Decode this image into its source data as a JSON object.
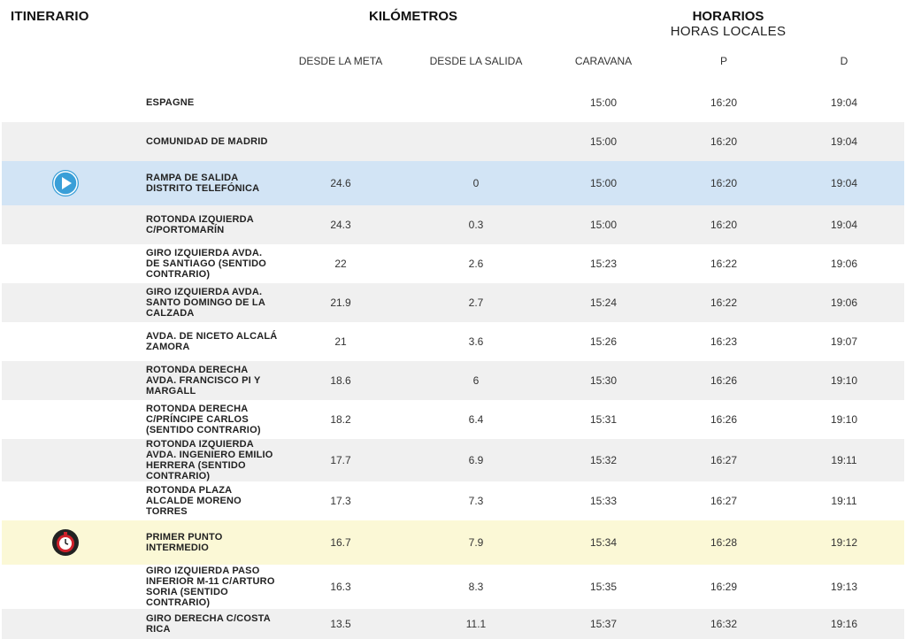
{
  "header": {
    "itinerario": "ITINERARIO",
    "kilometros": "KILÓMETROS",
    "horarios": "HORARIOS",
    "horas_locales": "HORAS LOCALES"
  },
  "columns": {
    "desde_meta": "DESDE LA META",
    "desde_salida": "DESDE LA SALIDA",
    "caravana": "CARAVANA",
    "p": "P",
    "d": "D"
  },
  "colors": {
    "start_row": "#d2e4f5",
    "intermediate_row": "#fbf8d6",
    "alt_row": "#f0f0f0",
    "play_icon": "#3a9fd8",
    "timer_icon": "#d0202a"
  },
  "rows": [
    {
      "name": "ESPAGNE",
      "meta": "",
      "salida": "",
      "caravana": "15:00",
      "p": "16:20",
      "d": "19:04",
      "style": "plain",
      "icon": ""
    },
    {
      "name": "COMUNIDAD DE MADRID",
      "meta": "",
      "salida": "",
      "caravana": "15:00",
      "p": "16:20",
      "d": "19:04",
      "style": "alt",
      "icon": ""
    },
    {
      "name": "RAMPA DE SALIDA DISTRITO TELEFÓNICA",
      "meta": "24.6",
      "salida": "0",
      "caravana": "15:00",
      "p": "16:20",
      "d": "19:04",
      "style": "start",
      "icon": "play-icon"
    },
    {
      "name": "ROTONDA IZQUIERDA C/PORTOMARÍN",
      "meta": "24.3",
      "salida": "0.3",
      "caravana": "15:00",
      "p": "16:20",
      "d": "19:04",
      "style": "alt",
      "icon": ""
    },
    {
      "name": "GIRO IZQUIERDA AVDA. DE SANTIAGO (SENTIDO CONTRARIO)",
      "meta": "22",
      "salida": "2.6",
      "caravana": "15:23",
      "p": "16:22",
      "d": "19:06",
      "style": "plain",
      "icon": ""
    },
    {
      "name": "GIRO IZQUIERDA AVDA. SANTO DOMINGO DE LA CALZADA",
      "meta": "21.9",
      "salida": "2.7",
      "caravana": "15:24",
      "p": "16:22",
      "d": "19:06",
      "style": "alt",
      "icon": ""
    },
    {
      "name": "AVDA. DE NICETO ALCALÁ ZAMORA",
      "meta": "21",
      "salida": "3.6",
      "caravana": "15:26",
      "p": "16:23",
      "d": "19:07",
      "style": "plain",
      "icon": ""
    },
    {
      "name": "ROTONDA DERECHA AVDA. FRANCISCO PI Y MARGALL",
      "meta": "18.6",
      "salida": "6",
      "caravana": "15:30",
      "p": "16:26",
      "d": "19:10",
      "style": "alt",
      "icon": ""
    },
    {
      "name": "ROTONDA DERECHA C/PRÍNCIPE CARLOS (SENTIDO CONTRARIO)",
      "meta": "18.2",
      "salida": "6.4",
      "caravana": "15:31",
      "p": "16:26",
      "d": "19:10",
      "style": "plain",
      "icon": ""
    },
    {
      "name": "ROTONDA IZQUIERDA AVDA. INGENIERO EMILIO HERRERA (SENTIDO CONTRARIO)",
      "meta": "17.7",
      "salida": "6.9",
      "caravana": "15:32",
      "p": "16:27",
      "d": "19:11",
      "style": "alt",
      "icon": ""
    },
    {
      "name": "ROTONDA PLAZA ALCALDE MORENO TORRES",
      "meta": "17.3",
      "salida": "7.3",
      "caravana": "15:33",
      "p": "16:27",
      "d": "19:11",
      "style": "plain",
      "icon": ""
    },
    {
      "name": "PRIMER PUNTO INTERMEDIO",
      "meta": "16.7",
      "salida": "7.9",
      "caravana": "15:34",
      "p": "16:28",
      "d": "19:12",
      "style": "inter",
      "icon": "stopwatch-icon"
    },
    {
      "name": "GIRO IZQUIERDA PASO INFERIOR M-11 C/ARTURO SORIA (SENTIDO CONTRARIO)",
      "meta": "16.3",
      "salida": "8.3",
      "caravana": "15:35",
      "p": "16:29",
      "d": "19:13",
      "style": "plain",
      "icon": ""
    },
    {
      "name": "GIRO DERECHA C/COSTA RICA",
      "meta": "13.5",
      "salida": "11.1",
      "caravana": "15:37",
      "p": "16:32",
      "d": "19:16",
      "style": "alt",
      "icon": ""
    }
  ]
}
